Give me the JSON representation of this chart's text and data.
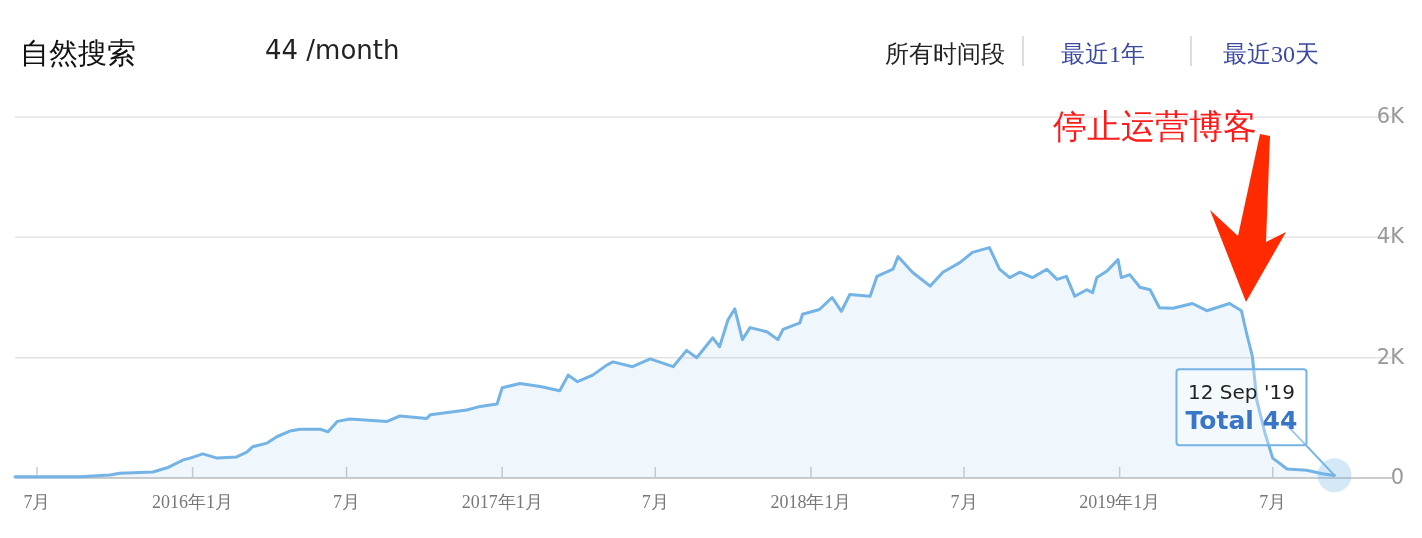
{
  "chart_data": {
    "type": "area",
    "title": "自然搜索",
    "subtitle": "44 /month",
    "annotations": [
      "所有时间段",
      "最近1年",
      "最近30天",
      "停止运营博客",
      {
        "text": "12 Sep '19",
        "x": "2019-09-12",
        "y": 44
      },
      {
        "text": "Total 44",
        "x": "2019-09-12",
        "y": 44
      }
    ],
    "x": [
      "2015-06-05",
      "2015-08-21",
      "2015-09-25",
      "2015-10-07",
      "2015-11-15",
      "2015-12-02",
      "2015-12-21",
      "2015-12-29",
      "2016-01-13",
      "2016-01-30",
      "2016-02-22",
      "2016-03-05",
      "2016-03-12",
      "2016-03-29",
      "2016-04-10",
      "2016-04-25",
      "2016-05-07",
      "2016-05-31",
      "2016-06-09",
      "2016-06-20",
      "2016-07-05",
      "2016-08-18",
      "2016-09-02",
      "2016-10-04",
      "2016-10-08",
      "2016-11-20",
      "2016-12-06",
      "2016-12-26",
      "2017-01-01",
      "2017-01-22",
      "2017-02-15",
      "2017-03-10",
      "2017-03-20",
      "2017-03-31",
      "2017-04-18",
      "2017-05-05",
      "2017-05-12",
      "2017-06-04",
      "2017-06-25",
      "2017-07-22",
      "2017-08-07",
      "2017-08-19",
      "2017-09-07",
      "2017-09-15",
      "2017-09-25",
      "2017-10-03",
      "2017-10-12",
      "2017-10-21",
      "2017-11-10",
      "2017-11-23",
      "2017-11-29",
      "2017-12-19",
      "2017-12-22",
      "2018-01-11",
      "2018-01-26",
      "2018-02-06",
      "2018-02-16",
      "2018-03-12",
      "2018-03-20",
      "2018-04-08",
      "2018-04-14",
      "2018-05-01",
      "2018-05-22",
      "2018-06-06",
      "2018-06-26",
      "2018-07-11",
      "2018-07-31",
      "2018-08-12",
      "2018-08-24",
      "2018-09-05",
      "2018-09-20",
      "2018-10-07",
      "2018-10-19",
      "2018-10-30",
      "2018-11-09",
      "2018-11-23",
      "2018-11-30",
      "2018-12-05",
      "2018-12-17",
      "2018-12-30",
      "2019-01-03",
      "2019-01-13",
      "2019-01-25",
      "2019-02-06",
      "2019-02-17",
      "2019-03-05",
      "2019-03-28",
      "2019-04-14",
      "2019-05-11",
      "2019-05-25",
      "2019-05-31",
      "2019-06-07",
      "2019-06-12",
      "2019-06-22",
      "2019-07-01",
      "2019-07-18",
      "2019-08-10",
      "2019-08-29",
      "2019-09-12"
    ],
    "series": [
      {
        "color": "#74b3e5",
        "values": [
          20,
          20,
          50,
          80,
          100,
          170,
          300,
          330,
          400,
          330,
          350,
          430,
          520,
          580,
          690,
          780,
          810,
          810,
          770,
          940,
          980,
          940,
          1030,
          990,
          1050,
          1130,
          1190,
          1230,
          1500,
          1570,
          1520,
          1450,
          1710,
          1600,
          1710,
          1880,
          1930,
          1850,
          1980,
          1850,
          2120,
          2000,
          2330,
          2180,
          2630,
          2810,
          2300,
          2500,
          2430,
          2300,
          2470,
          2580,
          2720,
          2800,
          3000,
          2770,
          3050,
          3020,
          3350,
          3470,
          3680,
          3420,
          3190,
          3420,
          3580,
          3750,
          3830,
          3470,
          3330,
          3420,
          3330,
          3470,
          3300,
          3350,
          3020,
          3130,
          3080,
          3330,
          3440,
          3630,
          3330,
          3380,
          3170,
          3130,
          2830,
          2820,
          2900,
          2780,
          2900,
          2780,
          2410,
          2020,
          1300,
          740,
          330,
          150,
          130,
          70,
          44
        ]
      }
    ],
    "xlim": [
      "2015-06-05",
      "2019-11-19"
    ],
    "xticks": [
      {
        "value": "2015-07-01",
        "label": "7月"
      },
      {
        "value": "2016-01-01",
        "label": "2016年1月"
      },
      {
        "value": "2016-07-01",
        "label": "7月"
      },
      {
        "value": "2017-01-01",
        "label": "2017年1月"
      },
      {
        "value": "2017-07-01",
        "label": "7月"
      },
      {
        "value": "2018-01-01",
        "label": "2018年1月"
      },
      {
        "value": "2018-07-01",
        "label": "7月"
      },
      {
        "value": "2019-01-01",
        "label": "2019年1月"
      },
      {
        "value": "2019-07-01",
        "label": "7月"
      }
    ],
    "ylim": [
      0,
      6000
    ],
    "yticks": [
      0,
      {
        "value": 2000,
        "label": "2K"
      },
      {
        "value": 4000,
        "label": "4K"
      },
      {
        "value": 6000,
        "label": "6K"
      }
    ],
    "grid": "y"
  }
}
